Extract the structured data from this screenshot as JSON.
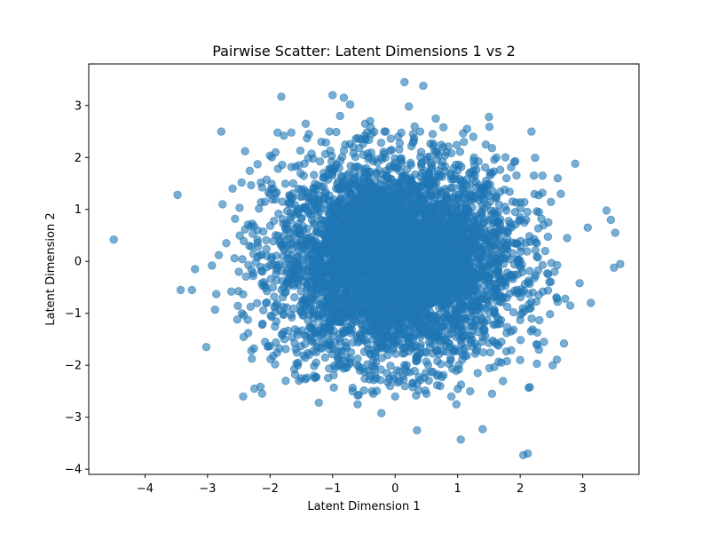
{
  "chart_data": {
    "type": "scatter",
    "title": "Pairwise Scatter: Latent Dimensions 1 vs 2",
    "xlabel": "Latent Dimension 1",
    "ylabel": "Latent Dimension 2",
    "xlim": [
      -4.9,
      3.9
    ],
    "ylim": [
      -4.1,
      3.8
    ],
    "xticks": [
      -4,
      -3,
      -2,
      -1,
      0,
      1,
      2,
      3
    ],
    "yticks": [
      -4,
      -3,
      -2,
      -1,
      0,
      1,
      2,
      3
    ],
    "grid": false,
    "marker_color": "#1f77b4",
    "marker_alpha": 0.6,
    "point_count_estimate": 5000,
    "distribution": "approximately bivariate standard normal, centered near (0, 0)",
    "series": [
      {
        "points": [
          [
            -4.5,
            0.42
          ],
          [
            -3.48,
            1.28
          ],
          [
            -3.43,
            -0.55
          ],
          [
            -3.25,
            -0.55
          ],
          [
            -3.2,
            -0.15
          ],
          [
            -3.02,
            -1.65
          ],
          [
            -2.93,
            -0.08
          ],
          [
            -2.88,
            -0.93
          ],
          [
            -2.86,
            -0.63
          ],
          [
            -2.82,
            0.12
          ],
          [
            -2.78,
            2.5
          ],
          [
            -2.76,
            1.1
          ],
          [
            -2.62,
            -0.58
          ],
          [
            -2.56,
            0.82
          ],
          [
            -2.5,
            -0.2
          ],
          [
            -2.43,
            -2.6
          ],
          [
            -2.4,
            2.12
          ],
          [
            -2.35,
            -1.38
          ],
          [
            -2.3,
            -1.72
          ],
          [
            -2.25,
            -2.45
          ],
          [
            -2.2,
            1.87
          ],
          [
            -2.12,
            -1.2
          ],
          [
            -2.08,
            -1.55
          ],
          [
            -1.95,
            -1.82
          ],
          [
            -1.92,
            -1.98
          ],
          [
            -1.88,
            2.48
          ],
          [
            -1.82,
            3.17
          ],
          [
            -1.78,
            2.42
          ],
          [
            -1.75,
            -2.3
          ],
          [
            -1.66,
            2.48
          ],
          [
            -1.6,
            -2.18
          ],
          [
            -1.55,
            -1.95
          ],
          [
            -1.5,
            -2.25
          ],
          [
            -1.43,
            2.65
          ],
          [
            -1.38,
            2.45
          ],
          [
            -1.3,
            -2.2
          ],
          [
            -1.22,
            -2.72
          ],
          [
            -1.18,
            2.3
          ],
          [
            -1.12,
            -1.85
          ],
          [
            -1.05,
            2.5
          ],
          [
            -1.0,
            3.2
          ],
          [
            -0.98,
            -2.43
          ],
          [
            -0.88,
            2.8
          ],
          [
            -0.82,
            3.15
          ],
          [
            -0.78,
            -2.05
          ],
          [
            -0.72,
            3.02
          ],
          [
            -0.68,
            -2.5
          ],
          [
            -0.6,
            -2.75
          ],
          [
            -0.55,
            2.35
          ],
          [
            -0.48,
            2.65
          ],
          [
            -0.4,
            2.7
          ],
          [
            -0.35,
            -2.55
          ],
          [
            -0.3,
            -2.25
          ],
          [
            -0.22,
            -2.92
          ],
          [
            -0.15,
            2.5
          ],
          [
            -0.08,
            -2.4
          ],
          [
            0.0,
            -2.6
          ],
          [
            0.05,
            2.4
          ],
          [
            0.15,
            3.45
          ],
          [
            0.22,
            2.98
          ],
          [
            0.28,
            -2.35
          ],
          [
            0.35,
            -3.25
          ],
          [
            0.4,
            2.5
          ],
          [
            0.45,
            3.38
          ],
          [
            0.5,
            -2.55
          ],
          [
            0.6,
            2.45
          ],
          [
            0.65,
            2.75
          ],
          [
            0.72,
            -2.4
          ],
          [
            0.82,
            2.1
          ],
          [
            0.9,
            -2.6
          ],
          [
            0.98,
            -2.75
          ],
          [
            1.05,
            -3.43
          ],
          [
            1.1,
            2.3
          ],
          [
            1.15,
            2.55
          ],
          [
            1.2,
            -2.5
          ],
          [
            1.25,
            2.4
          ],
          [
            1.32,
            -2.15
          ],
          [
            1.4,
            -3.23
          ],
          [
            1.45,
            2.25
          ],
          [
            1.5,
            2.78
          ],
          [
            1.55,
            -2.55
          ],
          [
            1.62,
            2.0
          ],
          [
            1.7,
            -1.95
          ],
          [
            1.78,
            1.6
          ],
          [
            1.85,
            -1.35
          ],
          [
            1.92,
            0.95
          ],
          [
            2.0,
            -1.9
          ],
          [
            2.05,
            -3.73
          ],
          [
            2.12,
            -3.7
          ],
          [
            2.18,
            2.5
          ],
          [
            2.22,
            1.65
          ],
          [
            2.3,
            -1.7
          ],
          [
            2.38,
            -1.55
          ],
          [
            2.45,
            0.75
          ],
          [
            2.52,
            -2.0
          ],
          [
            2.6,
            1.6
          ],
          [
            2.65,
            1.3
          ],
          [
            2.7,
            -1.58
          ],
          [
            2.75,
            0.45
          ],
          [
            2.8,
            -0.85
          ],
          [
            2.88,
            1.88
          ],
          [
            2.95,
            -0.42
          ],
          [
            3.08,
            0.65
          ],
          [
            3.13,
            -0.8
          ],
          [
            3.38,
            0.98
          ],
          [
            3.45,
            0.8
          ],
          [
            3.5,
            -0.12
          ],
          [
            3.52,
            0.55
          ],
          [
            3.6,
            -0.05
          ],
          [
            2.72,
            -0.72
          ],
          [
            2.55,
            -0.2
          ],
          [
            2.4,
            0.2
          ],
          [
            -2.7,
            0.35
          ],
          [
            -2.6,
            1.4
          ],
          [
            -2.45,
            -1.0
          ],
          [
            -2.2,
            0.6
          ],
          [
            -2.1,
            -0.4
          ],
          [
            2.2,
            -0.6
          ],
          [
            2.3,
            0.95
          ],
          [
            -1.95,
            1.4
          ]
        ]
      }
    ]
  }
}
